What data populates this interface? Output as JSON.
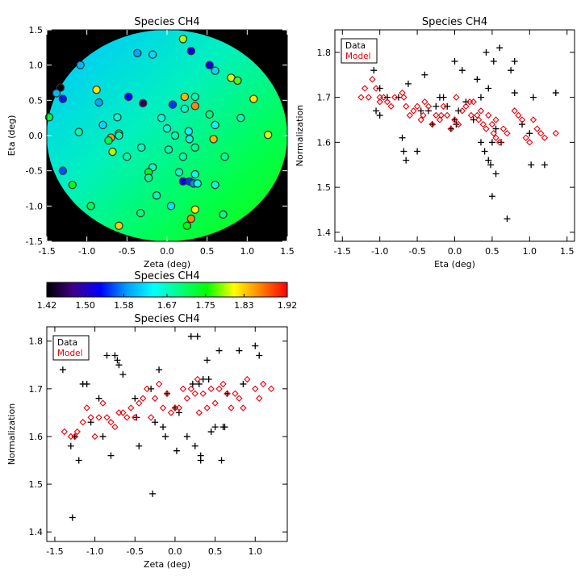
{
  "figure": {
    "background": "#ffffff",
    "font_color": "#000000",
    "model_color": "#e8000b",
    "data_color": "#000000"
  },
  "chart_data": [
    {
      "id": "map",
      "type": "scatter",
      "title": "Species CH4",
      "xlabel": "Zeta (deg)",
      "ylabel": "Eta (deg)",
      "xlim": [
        -1.5,
        1.5
      ],
      "ylim": [
        -1.5,
        1.5
      ],
      "xticks": [
        "-1.5",
        "-1.0",
        "-0.5",
        "0.0",
        "0.5",
        "1.0",
        "1.5"
      ],
      "yticks": [
        "-1.5",
        "-1.0",
        "-0.5",
        "0.0",
        "0.5",
        "1.0",
        "1.5"
      ],
      "xtick_values": [
        -1.5,
        -1.0,
        -0.5,
        0.0,
        0.5,
        1.0,
        1.5
      ],
      "ytick_values": [
        -1.5,
        -1.0,
        -0.5,
        0.0,
        0.5,
        1.0,
        1.5
      ],
      "field_radius_deg": 1.5,
      "outside_color": "#000000",
      "points": [
        {
          "zeta": 0.2,
          "eta": 1.37,
          "v": 1.79
        },
        {
          "zeta": -0.37,
          "eta": 1.17,
          "v": 1.59
        },
        {
          "zeta": -0.18,
          "eta": 1.15,
          "v": 1.62
        },
        {
          "zeta": 0.3,
          "eta": 1.2,
          "v": 1.52
        },
        {
          "zeta": -1.08,
          "eta": 1.0,
          "v": 1.6
        },
        {
          "zeta": 0.53,
          "eta": 1.0,
          "v": 1.52
        },
        {
          "zeta": 0.6,
          "eta": 0.92,
          "v": 1.62
        },
        {
          "zeta": 0.8,
          "eta": 0.82,
          "v": 1.8
        },
        {
          "zeta": 0.88,
          "eta": 0.78,
          "v": 1.77
        },
        {
          "zeta": -1.33,
          "eta": 0.68,
          "v": 1.42
        },
        {
          "zeta": -1.38,
          "eta": 0.6,
          "v": 1.6
        },
        {
          "zeta": -1.3,
          "eta": 0.52,
          "v": 1.54
        },
        {
          "zeta": -0.88,
          "eta": 0.65,
          "v": 1.82
        },
        {
          "zeta": -0.85,
          "eta": 0.47,
          "v": 1.59
        },
        {
          "zeta": -0.48,
          "eta": 0.55,
          "v": 1.53
        },
        {
          "zeta": -0.3,
          "eta": 0.46,
          "v": 1.46
        },
        {
          "zeta": 0.22,
          "eta": 0.55,
          "v": 1.84
        },
        {
          "zeta": 0.35,
          "eta": 0.55,
          "v": 1.68
        },
        {
          "zeta": 0.07,
          "eta": 0.44,
          "v": 1.55
        },
        {
          "zeta": 0.22,
          "eta": 0.38,
          "v": 1.67
        },
        {
          "zeta": 0.35,
          "eta": 0.42,
          "v": 1.86
        },
        {
          "zeta": 1.08,
          "eta": 0.52,
          "v": 1.82
        },
        {
          "zeta": -1.47,
          "eta": 0.26,
          "v": 1.73
        },
        {
          "zeta": -0.62,
          "eta": 0.26,
          "v": 1.66
        },
        {
          "zeta": -0.07,
          "eta": 0.25,
          "v": 1.66
        },
        {
          "zeta": 0.53,
          "eta": 0.3,
          "v": 1.7
        },
        {
          "zeta": 0.92,
          "eta": 0.25,
          "v": 1.68
        },
        {
          "zeta": -0.8,
          "eta": 0.15,
          "v": 1.62
        },
        {
          "zeta": 0.6,
          "eta": 0.15,
          "v": 1.64
        },
        {
          "zeta": 0.27,
          "eta": 0.06,
          "v": 1.64
        },
        {
          "zeta": -1.1,
          "eta": 0.05,
          "v": 1.68
        },
        {
          "zeta": 0.0,
          "eta": 0.1,
          "v": 1.66
        },
        {
          "zeta": -0.6,
          "eta": 0.03,
          "v": 1.71
        },
        {
          "zeta": -0.6,
          "eta": 0.0,
          "v": 1.68
        },
        {
          "zeta": 0.1,
          "eta": 0.0,
          "v": 1.68
        },
        {
          "zeta": 1.26,
          "eta": 0.01,
          "v": 1.8
        },
        {
          "zeta": -0.7,
          "eta": -0.03,
          "v": 1.85
        },
        {
          "zeta": -0.73,
          "eta": -0.07,
          "v": 1.72
        },
        {
          "zeta": 0.58,
          "eta": -0.05,
          "v": 1.84
        },
        {
          "zeta": 0.28,
          "eta": -0.05,
          "v": 1.66
        },
        {
          "zeta": -0.32,
          "eta": -0.17,
          "v": 1.67
        },
        {
          "zeta": 0.35,
          "eta": -0.17,
          "v": 1.69
        },
        {
          "zeta": 0.02,
          "eta": -0.2,
          "v": 1.68
        },
        {
          "zeta": -0.68,
          "eta": -0.23,
          "v": 1.79
        },
        {
          "zeta": 0.2,
          "eta": -0.3,
          "v": 1.68
        },
        {
          "zeta": -0.5,
          "eta": -0.3,
          "v": 1.68
        },
        {
          "zeta": 0.72,
          "eta": -0.3,
          "v": 1.69
        },
        {
          "zeta": -0.18,
          "eta": -0.45,
          "v": 1.67
        },
        {
          "zeta": -1.3,
          "eta": -0.5,
          "v": 1.56
        },
        {
          "zeta": -0.23,
          "eta": -0.52,
          "v": 1.74
        },
        {
          "zeta": -0.23,
          "eta": -0.6,
          "v": 1.69
        },
        {
          "zeta": 0.15,
          "eta": -0.52,
          "v": 1.67
        },
        {
          "zeta": 0.35,
          "eta": -0.55,
          "v": 1.65
        },
        {
          "zeta": -1.18,
          "eta": -0.7,
          "v": 1.75
        },
        {
          "zeta": 0.2,
          "eta": -0.65,
          "v": 1.52
        },
        {
          "zeta": 0.28,
          "eta": -0.65,
          "v": 1.55
        },
        {
          "zeta": 0.33,
          "eta": -0.68,
          "v": 1.58
        },
        {
          "zeta": 0.38,
          "eta": -0.68,
          "v": 1.65
        },
        {
          "zeta": 0.6,
          "eta": -0.7,
          "v": 1.66
        },
        {
          "zeta": -0.13,
          "eta": -0.85,
          "v": 1.68
        },
        {
          "zeta": -0.95,
          "eta": -1.0,
          "v": 1.72
        },
        {
          "zeta": 0.05,
          "eta": -1.0,
          "v": 1.63
        },
        {
          "zeta": 0.35,
          "eta": -1.05,
          "v": 1.81
        },
        {
          "zeta": -0.33,
          "eta": -1.1,
          "v": 1.7
        },
        {
          "zeta": 0.7,
          "eta": -1.12,
          "v": 1.7
        },
        {
          "zeta": 0.3,
          "eta": -1.18,
          "v": 1.86
        },
        {
          "zeta": -0.6,
          "eta": -1.28,
          "v": 1.83
        },
        {
          "zeta": 0.25,
          "eta": -1.28,
          "v": 1.75
        }
      ]
    },
    {
      "id": "colorbar",
      "type": "heatmap",
      "title": "Species CH4",
      "range": [
        1.42,
        1.92
      ],
      "ticks": [
        "1.42",
        "1.50",
        "1.58",
        "1.67",
        "1.75",
        "1.83",
        "1.92"
      ],
      "tick_values": [
        1.42,
        1.5,
        1.58,
        1.67,
        1.75,
        1.83,
        1.92
      ],
      "stops": [
        "#000000",
        "#40008c",
        "#0000ff",
        "#00a0ff",
        "#00ffff",
        "#00ff80",
        "#00ff00",
        "#ffff00",
        "#ff8000",
        "#ff0000"
      ]
    },
    {
      "id": "eta_plot",
      "type": "scatter",
      "title": "Species CH4",
      "xlabel": "Eta (deg)",
      "ylabel": "Normalization",
      "xlim": [
        -1.6,
        1.6
      ],
      "ylim": [
        1.38,
        1.85
      ],
      "xticks": [
        "-1.5",
        "-1.0",
        "-0.5",
        "0.0",
        "0.5",
        "1.0",
        "1.5"
      ],
      "yticks": [
        "1.4",
        "1.5",
        "1.6",
        "1.7",
        "1.8"
      ],
      "xtick_values": [
        -1.5,
        -1.0,
        -0.5,
        0.0,
        0.5,
        1.0,
        1.5
      ],
      "ytick_values": [
        1.4,
        1.5,
        1.6,
        1.7,
        1.8
      ],
      "legend": {
        "position": "top-left",
        "entries": [
          {
            "label": "Data",
            "color": "#000000"
          },
          {
            "label": "Model",
            "color": "#e8000b"
          }
        ]
      },
      "series": [
        {
          "name": "Data",
          "marker": "plus",
          "color": "#000000",
          "x": [
            -1.08,
            -1.05,
            -1.0,
            -1.0,
            -0.9,
            -0.75,
            -0.7,
            -0.68,
            -0.65,
            -0.62,
            -0.5,
            -0.45,
            -0.4,
            -0.35,
            -0.3,
            -0.25,
            -0.2,
            -0.15,
            -0.1,
            -0.05,
            0.0,
            0.0,
            0.02,
            0.05,
            0.1,
            0.15,
            0.25,
            0.3,
            0.35,
            0.35,
            0.4,
            0.42,
            0.45,
            0.45,
            0.48,
            0.5,
            0.5,
            0.52,
            0.55,
            0.55,
            0.6,
            0.62,
            0.7,
            0.75,
            0.8,
            0.8,
            0.9,
            1.0,
            1.02,
            1.05,
            1.2,
            1.35
          ],
          "y": [
            1.76,
            1.67,
            1.66,
            1.72,
            1.7,
            1.7,
            1.61,
            1.58,
            1.56,
            1.73,
            1.58,
            1.67,
            1.75,
            1.67,
            1.64,
            1.68,
            1.7,
            1.7,
            1.68,
            1.63,
            1.78,
            1.65,
            1.64,
            1.67,
            1.76,
            1.69,
            1.65,
            1.74,
            1.7,
            1.6,
            1.58,
            1.8,
            1.56,
            1.72,
            1.55,
            1.48,
            1.6,
            1.78,
            1.53,
            1.63,
            1.81,
            1.6,
            1.43,
            1.76,
            1.78,
            1.71,
            1.64,
            1.62,
            1.55,
            1.7,
            1.55,
            1.71
          ]
        },
        {
          "name": "Model",
          "marker": "diamond",
          "color": "#e8000b",
          "x": [
            -1.25,
            -1.2,
            -1.15,
            -1.1,
            -1.05,
            -1.0,
            -1.0,
            -0.95,
            -0.9,
            -0.85,
            -0.8,
            -0.7,
            -0.68,
            -0.65,
            -0.6,
            -0.55,
            -0.5,
            -0.45,
            -0.42,
            -0.4,
            -0.35,
            -0.3,
            -0.25,
            -0.2,
            -0.18,
            -0.15,
            -0.1,
            -0.05,
            0.0,
            0.02,
            0.05,
            0.1,
            0.15,
            0.2,
            0.22,
            0.25,
            0.3,
            0.32,
            0.35,
            0.38,
            0.42,
            0.45,
            0.5,
            0.52,
            0.55,
            0.55,
            0.6,
            0.65,
            0.7,
            0.8,
            0.85,
            0.9,
            0.95,
            1.0,
            1.05,
            1.1,
            1.15,
            1.2,
            1.35
          ],
          "y": [
            1.7,
            1.72,
            1.7,
            1.74,
            1.72,
            1.69,
            1.7,
            1.7,
            1.69,
            1.68,
            1.7,
            1.71,
            1.7,
            1.68,
            1.66,
            1.67,
            1.68,
            1.65,
            1.66,
            1.69,
            1.68,
            1.64,
            1.66,
            1.65,
            1.66,
            1.68,
            1.66,
            1.63,
            1.65,
            1.7,
            1.64,
            1.67,
            1.68,
            1.69,
            1.66,
            1.69,
            1.66,
            1.65,
            1.67,
            1.64,
            1.63,
            1.66,
            1.64,
            1.62,
            1.65,
            1.61,
            1.6,
            1.63,
            1.62,
            1.67,
            1.66,
            1.65,
            1.61,
            1.6,
            1.65,
            1.63,
            1.62,
            1.61,
            1.62
          ]
        }
      ]
    },
    {
      "id": "zeta_plot",
      "type": "scatter",
      "title": "Species CH4",
      "xlabel": "Zeta (deg)",
      "ylabel": "Normalization",
      "xlim": [
        -1.6,
        1.4
      ],
      "ylim": [
        1.38,
        1.83
      ],
      "xticks": [
        "-1.5",
        "-1.0",
        "-0.5",
        "0.0",
        "0.5",
        "1.0"
      ],
      "yticks": [
        "1.4",
        "1.5",
        "1.6",
        "1.7",
        "1.8"
      ],
      "xtick_values": [
        -1.5,
        -1.0,
        -0.5,
        0.0,
        0.5,
        1.0
      ],
      "ytick_values": [
        1.4,
        1.5,
        1.6,
        1.7,
        1.8
      ],
      "legend": {
        "position": "top-left",
        "entries": [
          {
            "label": "Data",
            "color": "#000000"
          },
          {
            "label": "Model",
            "color": "#e8000b"
          }
        ]
      },
      "series": [
        {
          "name": "Data",
          "marker": "plus",
          "color": "#000000",
          "x": [
            -1.4,
            -1.3,
            -1.28,
            -1.25,
            -1.2,
            -1.15,
            -1.1,
            -1.05,
            -0.95,
            -0.9,
            -0.85,
            -0.8,
            -0.75,
            -0.72,
            -0.7,
            -0.65,
            -0.5,
            -0.48,
            -0.45,
            -0.3,
            -0.28,
            -0.25,
            -0.2,
            -0.15,
            -0.12,
            -0.1,
            0.0,
            0.02,
            0.05,
            0.15,
            0.2,
            0.22,
            0.25,
            0.28,
            0.3,
            0.32,
            0.32,
            0.35,
            0.4,
            0.42,
            0.45,
            0.5,
            0.55,
            0.58,
            0.6,
            0.62,
            0.65,
            0.8,
            0.85,
            1.0,
            1.05
          ],
          "y": [
            1.74,
            1.58,
            1.43,
            1.6,
            1.55,
            1.71,
            1.71,
            1.63,
            1.68,
            1.6,
            1.77,
            1.56,
            1.77,
            1.76,
            1.75,
            1.73,
            1.68,
            1.64,
            1.58,
            1.7,
            1.48,
            1.63,
            1.74,
            1.62,
            1.6,
            1.69,
            1.66,
            1.57,
            1.65,
            1.6,
            1.81,
            1.71,
            1.58,
            1.81,
            1.71,
            1.55,
            1.56,
            1.72,
            1.76,
            1.72,
            1.61,
            1.62,
            1.78,
            1.55,
            1.62,
            1.62,
            1.69,
            1.78,
            1.71,
            1.79,
            1.77
          ]
        },
        {
          "name": "Model",
          "marker": "diamond",
          "color": "#e8000b",
          "x": [
            -1.38,
            -1.3,
            -1.25,
            -1.22,
            -1.15,
            -1.1,
            -1.05,
            -1.0,
            -0.95,
            -0.9,
            -0.85,
            -0.8,
            -0.75,
            -0.7,
            -0.65,
            -0.6,
            -0.55,
            -0.5,
            -0.45,
            -0.4,
            -0.35,
            -0.3,
            -0.25,
            -0.2,
            -0.15,
            -0.1,
            -0.05,
            0.0,
            0.05,
            0.1,
            0.15,
            0.2,
            0.25,
            0.28,
            0.3,
            0.35,
            0.4,
            0.45,
            0.5,
            0.55,
            0.6,
            0.65,
            0.7,
            0.75,
            0.8,
            0.85,
            0.9,
            1.0,
            1.05,
            1.1,
            1.2
          ],
          "y": [
            1.61,
            1.6,
            1.6,
            1.61,
            1.63,
            1.66,
            1.64,
            1.6,
            1.64,
            1.67,
            1.64,
            1.63,
            1.62,
            1.65,
            1.65,
            1.64,
            1.66,
            1.64,
            1.67,
            1.68,
            1.7,
            1.64,
            1.68,
            1.71,
            1.66,
            1.69,
            1.65,
            1.66,
            1.66,
            1.7,
            1.68,
            1.7,
            1.69,
            1.72,
            1.65,
            1.69,
            1.66,
            1.7,
            1.67,
            1.7,
            1.71,
            1.69,
            1.66,
            1.69,
            1.68,
            1.66,
            1.72,
            1.7,
            1.68,
            1.71,
            1.7
          ]
        }
      ]
    }
  ]
}
